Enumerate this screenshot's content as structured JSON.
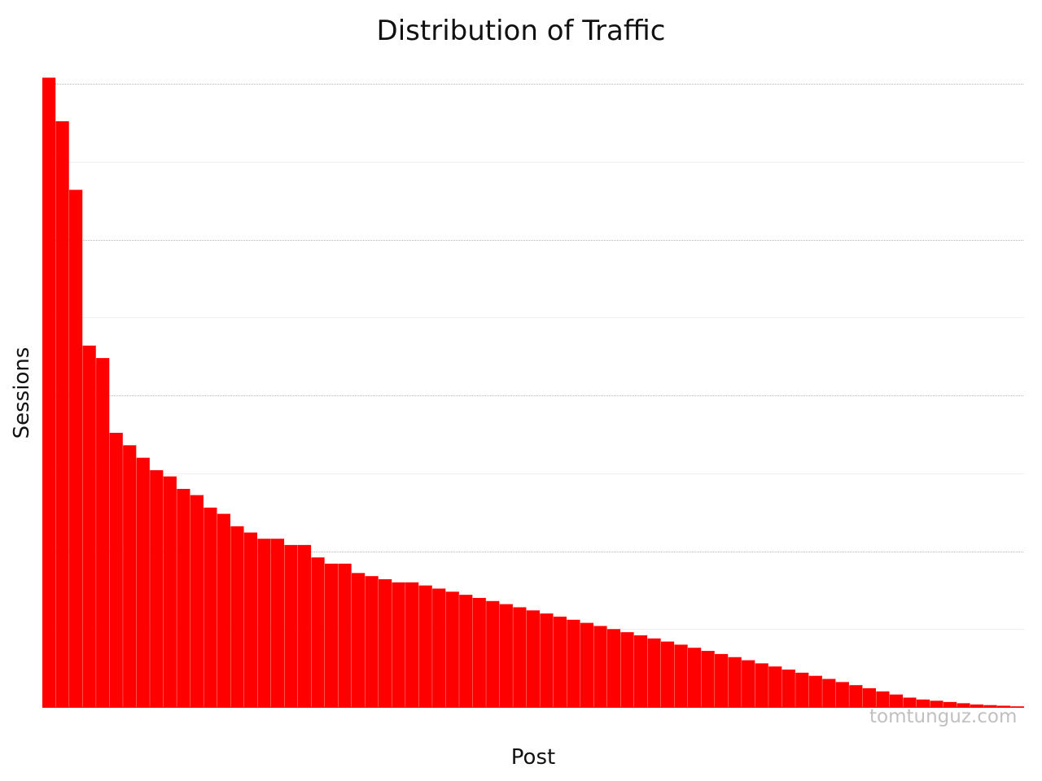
{
  "chart_data": {
    "type": "bar",
    "title": "Distribution of Traffic",
    "xlabel": "Post",
    "ylabel": "Sessions",
    "grid": true,
    "legend": "none",
    "bar_color": "#ff0000",
    "ylim": [
      0,
      100.8
    ],
    "values": [
      101,
      94,
      83,
      58,
      56,
      44,
      42,
      40,
      38,
      37,
      35,
      34,
      32,
      31,
      29,
      28,
      27,
      27,
      26,
      26,
      24,
      23,
      23,
      21.5,
      21,
      20.5,
      20,
      20,
      19.5,
      19,
      18.5,
      18,
      17.5,
      17,
      16.5,
      16,
      15.5,
      15,
      14.5,
      14,
      13.5,
      13,
      12.5,
      12,
      11.5,
      11,
      10.5,
      10,
      9.5,
      9,
      8.5,
      8,
      7.5,
      7,
      6.5,
      6,
      5.5,
      5,
      4.5,
      4,
      3.5,
      3,
      2.5,
      2,
      1.5,
      1.2,
      1,
      0.8,
      0.6,
      0.4,
      0.3,
      0.2,
      0.1
    ]
  },
  "watermark": "tomtunguz.com"
}
